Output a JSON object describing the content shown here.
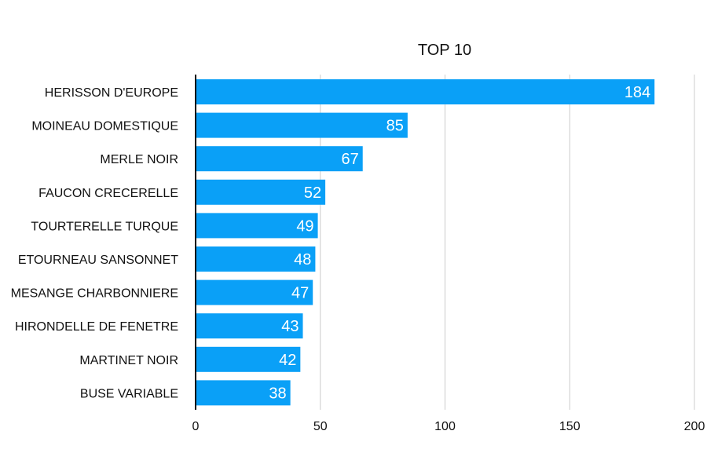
{
  "chart_data": {
    "type": "bar",
    "orientation": "horizontal",
    "title": "TOP 10",
    "xlabel": "",
    "ylabel": "",
    "categories": [
      "HERISSON D'EUROPE",
      "MOINEAU DOMESTIQUE",
      "MERLE NOIR",
      "FAUCON CRECERELLE",
      "TOURTERELLE TURQUE",
      "ETOURNEAU SANSONNET",
      "MESANGE CHARBONNIERE",
      "HIRONDELLE DE FENETRE",
      "MARTINET NOIR",
      "BUSE VARIABLE"
    ],
    "values": [
      184,
      85,
      67,
      52,
      49,
      48,
      47,
      43,
      42,
      38
    ],
    "xlim": [
      0,
      200
    ],
    "xticks": [
      0,
      50,
      100,
      150,
      200
    ],
    "grid": true,
    "data_labels": true,
    "colors": {
      "bar": "#0aa0f7",
      "grid": "#cccccc",
      "axis": "#111111",
      "value_text": "#ffffff"
    }
  }
}
